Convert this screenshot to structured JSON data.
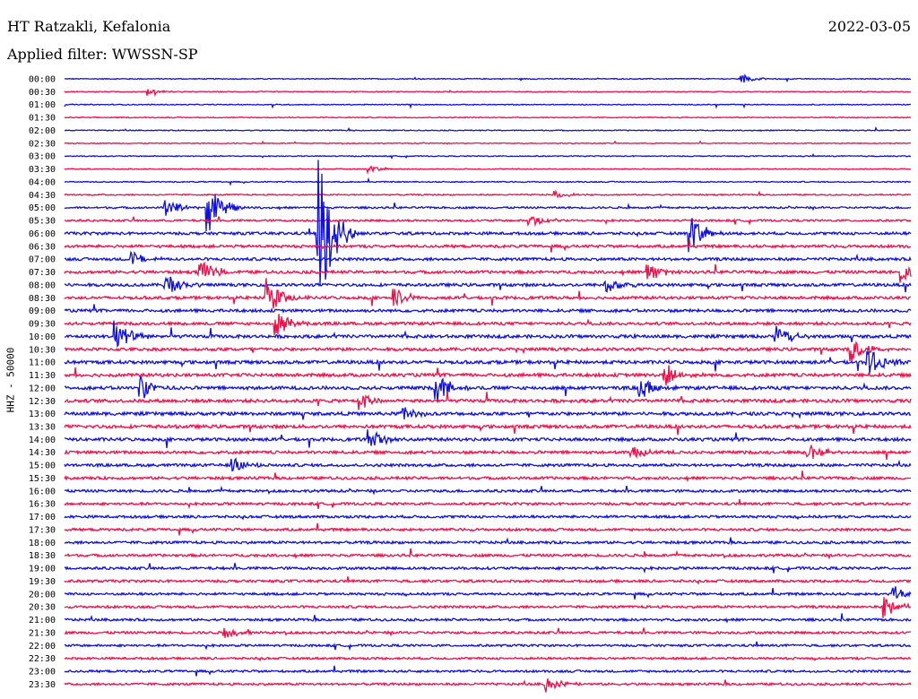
{
  "header": {
    "station": "HT Ratzakli, Kefalonia",
    "date": "2022-03-05",
    "filter": "Applied filter: WWSSN-SP"
  },
  "colors": {
    "even_trace": "#1010e0",
    "odd_trace": "#f0104a"
  },
  "chart_data": {
    "type": "line",
    "title": "HT Ratzakli, Kefalonia",
    "subtitle": "Applied filter: WWSSN-SP",
    "date": "2022-03-05",
    "ylabel": "HHZ - 50000",
    "xlabel": "",
    "grid": false,
    "legend": "none",
    "row_labels": [
      "00:00",
      "00:30",
      "01:00",
      "01:30",
      "02:00",
      "02:30",
      "03:00",
      "03:30",
      "04:00",
      "04:30",
      "05:00",
      "05:30",
      "06:00",
      "06:30",
      "07:00",
      "07:30",
      "08:00",
      "08:30",
      "09:00",
      "09:30",
      "10:00",
      "10:30",
      "11:00",
      "11:30",
      "12:00",
      "12:30",
      "13:00",
      "13:30",
      "14:00",
      "14:30",
      "15:00",
      "15:30",
      "16:00",
      "16:30",
      "17:00",
      "17:30",
      "18:00",
      "18:30",
      "19:00",
      "19:30",
      "20:00",
      "20:30",
      "21:00",
      "21:30",
      "22:00",
      "22:30",
      "23:00",
      "23:30"
    ],
    "noise_level": [
      0.5,
      0.5,
      0.5,
      0.5,
      0.5,
      0.5,
      0.5,
      0.5,
      0.6,
      0.7,
      1.0,
      1.1,
      1.5,
      1.5,
      1.5,
      1.6,
      1.6,
      1.6,
      1.6,
      1.6,
      1.7,
      1.7,
      1.8,
      1.8,
      1.8,
      1.8,
      1.8,
      1.8,
      1.7,
      1.6,
      1.5,
      1.5,
      1.4,
      1.4,
      1.4,
      1.4,
      1.4,
      1.4,
      1.4,
      1.4,
      1.3,
      1.3,
      1.3,
      1.3,
      1.2,
      1.2,
      1.2,
      1.2
    ],
    "events": [
      {
        "row": 0,
        "t": 0.8,
        "amp": 5
      },
      {
        "row": 1,
        "t": 0.1,
        "amp": 3
      },
      {
        "row": 7,
        "t": 0.36,
        "amp": 4
      },
      {
        "row": 9,
        "t": 0.58,
        "amp": 4
      },
      {
        "row": 10,
        "t": 0.12,
        "amp": 10
      },
      {
        "row": 10,
        "t": 0.17,
        "amp": 30
      },
      {
        "row": 11,
        "t": 0.55,
        "amp": 8
      },
      {
        "row": 12,
        "t": 0.3,
        "amp": 100
      },
      {
        "row": 12,
        "t": 0.74,
        "amp": 22
      },
      {
        "row": 14,
        "t": 0.08,
        "amp": 8
      },
      {
        "row": 15,
        "t": 0.16,
        "amp": 14
      },
      {
        "row": 15,
        "t": 0.69,
        "amp": 12
      },
      {
        "row": 15,
        "t": 0.99,
        "amp": 12
      },
      {
        "row": 16,
        "t": 0.12,
        "amp": 14
      },
      {
        "row": 16,
        "t": 0.64,
        "amp": 10
      },
      {
        "row": 17,
        "t": 0.24,
        "amp": 22
      },
      {
        "row": 17,
        "t": 0.39,
        "amp": 12
      },
      {
        "row": 19,
        "t": 0.25,
        "amp": 16
      },
      {
        "row": 20,
        "t": 0.06,
        "amp": 20
      },
      {
        "row": 20,
        "t": 0.84,
        "amp": 16
      },
      {
        "row": 21,
        "t": 0.93,
        "amp": 16
      },
      {
        "row": 22,
        "t": 0.95,
        "amp": 16
      },
      {
        "row": 23,
        "t": 0.71,
        "amp": 14
      },
      {
        "row": 24,
        "t": 0.09,
        "amp": 16
      },
      {
        "row": 24,
        "t": 0.44,
        "amp": 16
      },
      {
        "row": 24,
        "t": 0.68,
        "amp": 12
      },
      {
        "row": 25,
        "t": 0.35,
        "amp": 12
      },
      {
        "row": 26,
        "t": 0.4,
        "amp": 8
      },
      {
        "row": 28,
        "t": 0.36,
        "amp": 12
      },
      {
        "row": 29,
        "t": 0.67,
        "amp": 8
      },
      {
        "row": 29,
        "t": 0.88,
        "amp": 10
      },
      {
        "row": 30,
        "t": 0.2,
        "amp": 8
      },
      {
        "row": 40,
        "t": 0.98,
        "amp": 10
      },
      {
        "row": 41,
        "t": 0.97,
        "amp": 12
      },
      {
        "row": 43,
        "t": 0.19,
        "amp": 6
      },
      {
        "row": 47,
        "t": 0.57,
        "amp": 8
      }
    ]
  }
}
